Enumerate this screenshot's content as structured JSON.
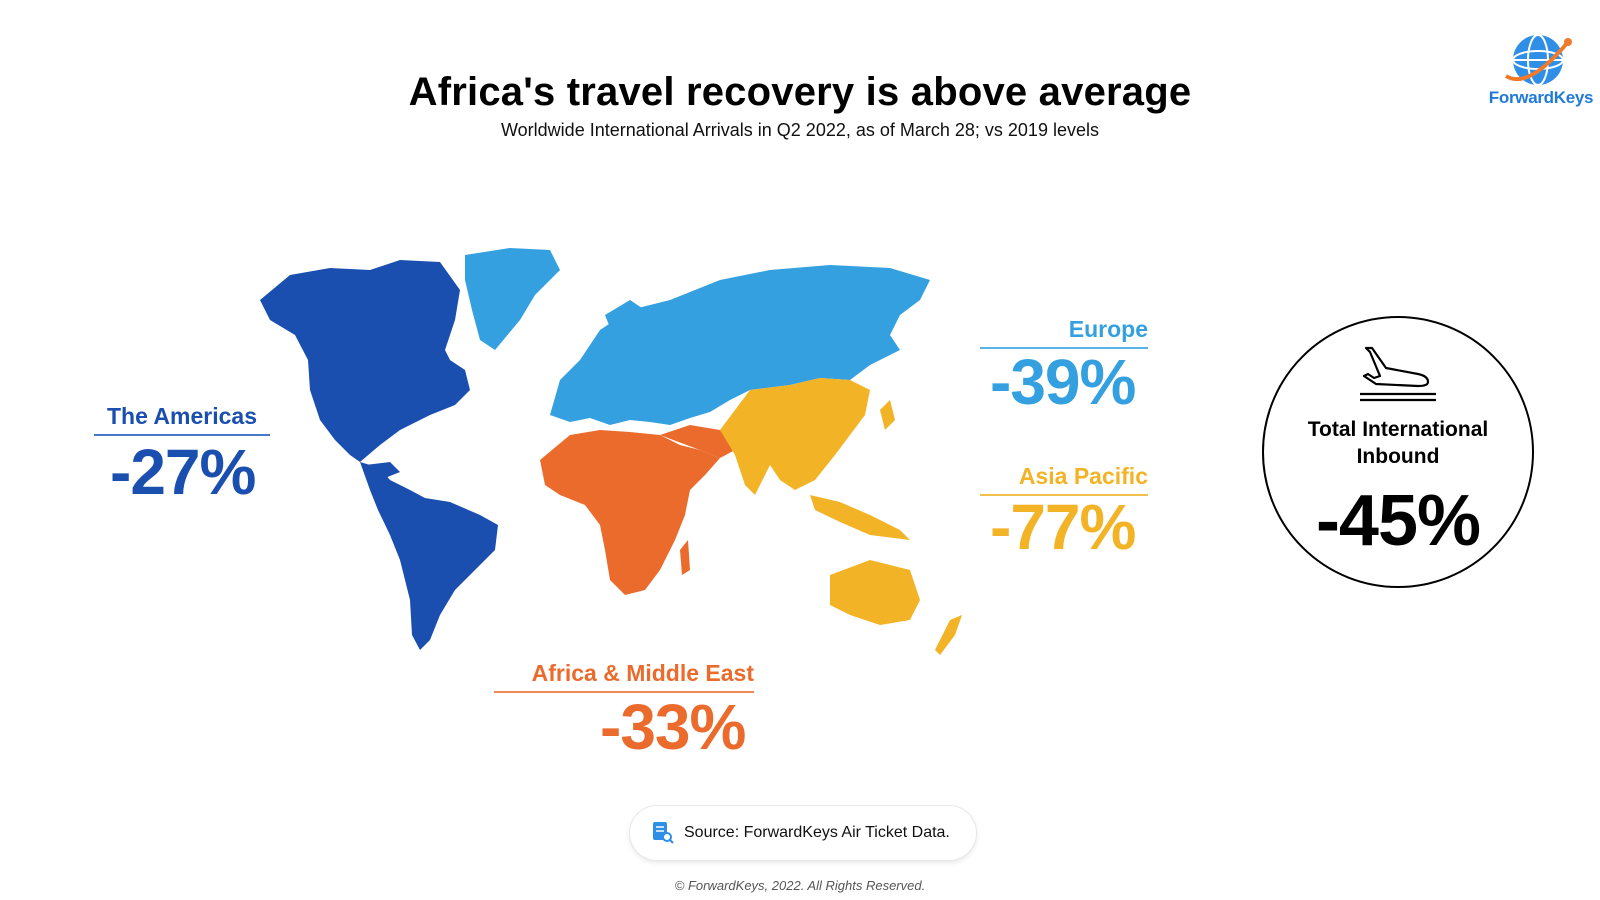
{
  "header": {
    "title": "Africa's travel recovery is above average",
    "subtitle": "Worldwide International Arrivals in Q2 2022, as of March 28; vs 2019 levels"
  },
  "brand": {
    "name": "ForwardKeys"
  },
  "regions": [
    {
      "name": "The Americas",
      "value": "-27%",
      "color": "#1a4fb0"
    },
    {
      "name": "Europe",
      "value": "-39%",
      "color": "#35a0e0"
    },
    {
      "name": "Asia Pacific",
      "value": "-77%",
      "color": "#f2b326"
    },
    {
      "name": "Africa & Middle East",
      "value": "-33%",
      "color": "#ea6b2c"
    }
  ],
  "total": {
    "label_line1": "Total International",
    "label_line2": "Inbound",
    "value": "-45%",
    "icon": "plane-landing-icon"
  },
  "footer": {
    "source": "Source: ForwardKeys Air Ticket Data.",
    "copyright": "© ForwardKeys, 2022. All Rights Reserved."
  }
}
